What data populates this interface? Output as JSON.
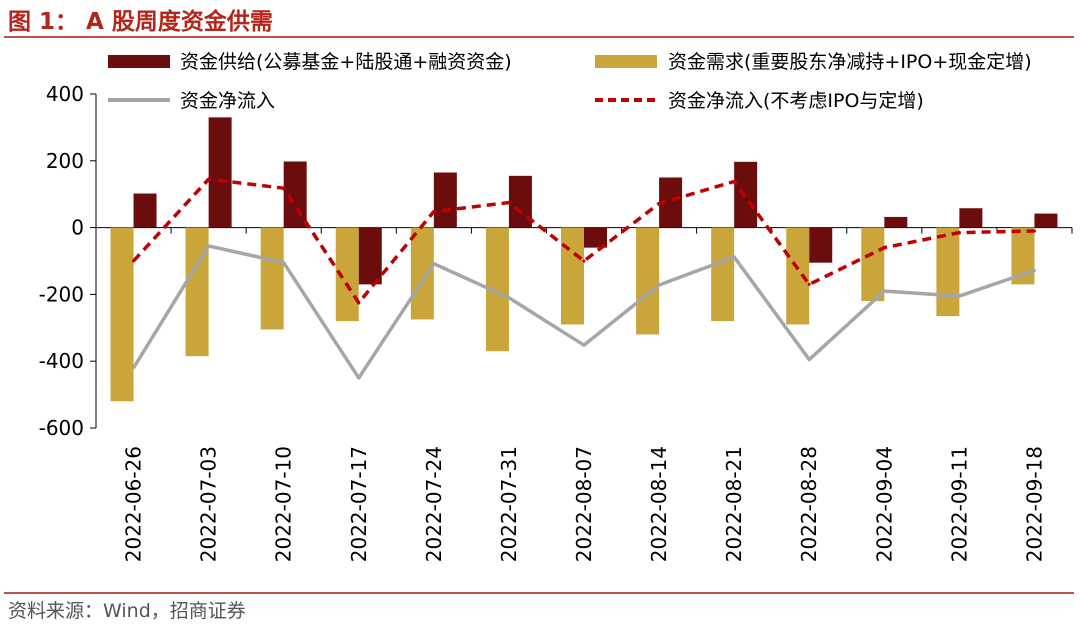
{
  "figure_title": "图 1： A 股周度资金供需",
  "source": "资料来源：Wind，招商证券",
  "colors": {
    "supply": "#6B0D0D",
    "demand": "#C9A53A",
    "net_flow": "#A6A6A6",
    "net_flow_ex": "#C00000",
    "accent": "#B5251C"
  },
  "chart_data": {
    "type": "bar",
    "title": "A 股周度资金供需",
    "xlabel": "",
    "ylabel": "",
    "ylim": [
      -600,
      400
    ],
    "yticks": [
      -600,
      -400,
      -200,
      0,
      200,
      400
    ],
    "grid": false,
    "legend_position": "top",
    "categories": [
      "2022-06-26",
      "2022-07-03",
      "2022-07-10",
      "2022-07-17",
      "2022-07-24",
      "2022-07-31",
      "2022-08-07",
      "2022-08-14",
      "2022-08-21",
      "2022-08-28",
      "2022-09-04",
      "2022-09-11",
      "2022-09-18"
    ],
    "series": [
      {
        "name": "资金供给(公募基金+陆股通+融资资金)",
        "type": "bar",
        "color": "#6B0D0D",
        "values": [
          102,
          330,
          198,
          -170,
          165,
          155,
          -60,
          150,
          197,
          -105,
          32,
          58,
          42
        ]
      },
      {
        "name": "资金需求(重要股东净减持+IPO+现金定增)",
        "type": "bar",
        "color": "#C9A53A",
        "values": [
          -520,
          -385,
          -305,
          -280,
          -275,
          -370,
          -290,
          -320,
          -280,
          -290,
          -220,
          -265,
          -170
        ]
      },
      {
        "name": "资金净流入",
        "type": "line",
        "style": "solid",
        "color": "#A6A6A6",
        "values": [
          -420,
          -55,
          -105,
          -450,
          -108,
          -210,
          -352,
          -172,
          -88,
          -395,
          -190,
          -205,
          -128
        ]
      },
      {
        "name": "资金净流入(不考虑IPO与定增)",
        "type": "line",
        "style": "dashed",
        "color": "#C00000",
        "values": [
          -100,
          145,
          118,
          -225,
          48,
          75,
          -100,
          72,
          138,
          -170,
          -60,
          -15,
          -10
        ]
      }
    ]
  }
}
